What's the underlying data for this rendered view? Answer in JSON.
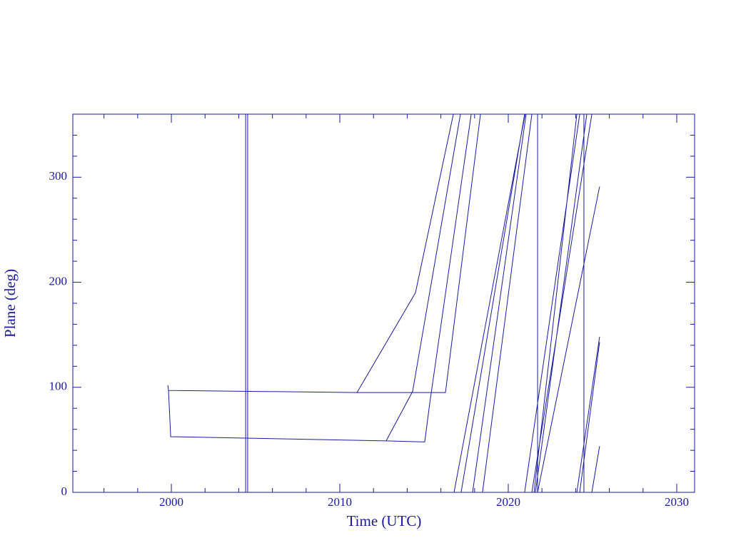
{
  "chart_data": {
    "type": "line",
    "xlabel": "Time (UTC)",
    "ylabel": "Plane (deg)",
    "xlim": [
      1994.15,
      2031.06
    ],
    "ylim": [
      0,
      360
    ],
    "xticks": [
      2000,
      2010,
      2020,
      2030
    ],
    "yticks": [
      0,
      100,
      200,
      300
    ],
    "xminorticks": [
      1996,
      1998,
      2002,
      2004,
      2006,
      2008,
      2012,
      2014,
      2016,
      2018,
      2022,
      2024,
      2026,
      2028
    ],
    "yminorticks": [
      20,
      40,
      60,
      80,
      120,
      140,
      160,
      180,
      220,
      240,
      260,
      280,
      320,
      340
    ],
    "color": "#1a1aa0",
    "x": [
      1999.79,
      1999.83,
      2011.02,
      2014.49,
      2016.74,
      null,
      2011.02,
      2016.27,
      2018.35,
      null,
      1999.83,
      1999.96,
      2012.75,
      2014.32,
      2017.16,
      null,
      2012.75,
      2015.04,
      2015.34,
      2017.8,
      null,
      2004.41,
      2004.41,
      null,
      2004.53,
      2004.53,
      null,
      2016.78,
      2021.0,
      null,
      2017.2,
      2020.97,
      null,
      2017.88,
      2021.06,
      null,
      2018.47,
      2021.4,
      null,
      2021.74,
      2021.74,
      null,
      2024.49,
      2024.49,
      null,
      2020.97,
      2024.24,
      null,
      2021.53,
      2024.07,
      null,
      2021.61,
      2024.66,
      null,
      2021.4,
      2024.96,
      null,
      2021.74,
      2025.42,
      null,
      2024.07,
      2025.42,
      null,
      2024.24,
      2025.42,
      null,
      2024.96,
      2025.42
    ],
    "series": [
      {
        "values": [
          102,
          97,
          95,
          190,
          360,
          null,
          95,
          95,
          360,
          null,
          97,
          53,
          49,
          96,
          360,
          null,
          49,
          48,
          85,
          360,
          null,
          0,
          360,
          null,
          0,
          360,
          null,
          0,
          360,
          null,
          0,
          360,
          null,
          0,
          360,
          null,
          0,
          360,
          null,
          0,
          360,
          null,
          0,
          360,
          null,
          0,
          360,
          null,
          0,
          360,
          null,
          0,
          360,
          null,
          0,
          360,
          null,
          0,
          291,
          null,
          0,
          148,
          null,
          0,
          143,
          null,
          0,
          44
        ]
      }
    ]
  }
}
